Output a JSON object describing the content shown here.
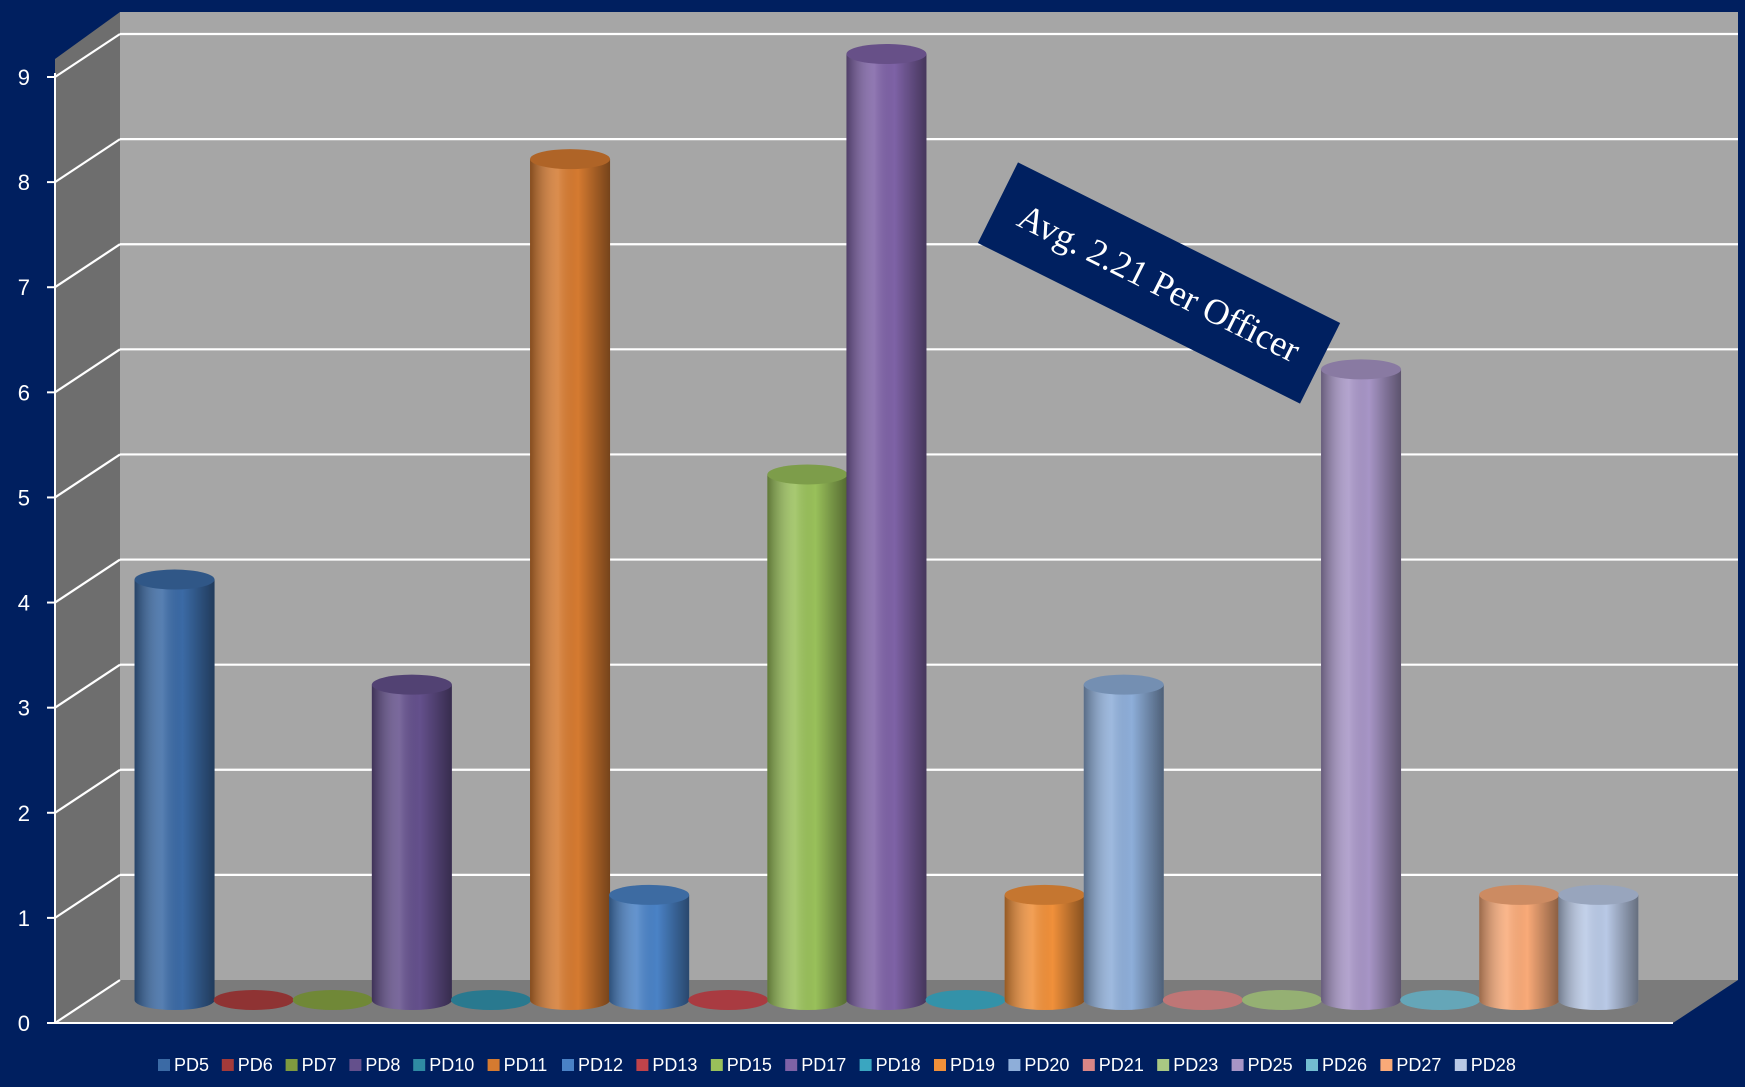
{
  "chart_data": {
    "type": "bar",
    "style": "3d-cylinder",
    "categories": [
      "PD5",
      "PD6",
      "PD7",
      "PD8",
      "PD10",
      "PD11",
      "PD12",
      "PD13",
      "PD15",
      "PD17",
      "PD18",
      "PD19",
      "PD20",
      "PD21",
      "PD23",
      "PD25",
      "PD26",
      "PD27",
      "PD28"
    ],
    "values": [
      4,
      0,
      0,
      3,
      0,
      8,
      1,
      0,
      5,
      9,
      0,
      1,
      3,
      0,
      0,
      6,
      0,
      1,
      1
    ],
    "colors": [
      "#3b6aa5",
      "#a33a3a",
      "#7f9a3f",
      "#64508c",
      "#2f8aa3",
      "#d57a30",
      "#4a82c6",
      "#c0434a",
      "#99c05a",
      "#7e62a6",
      "#3aa6c0",
      "#f0903a",
      "#8eaed9",
      "#d98686",
      "#a9c883",
      "#a795c6",
      "#73bdd1",
      "#f9aa78",
      "#b9c9e6"
    ],
    "ylim": [
      0,
      9
    ],
    "yticks": [
      "0",
      "1",
      "2",
      "3",
      "4",
      "5",
      "6",
      "7",
      "8",
      "9"
    ],
    "grid": true,
    "legend_position": "bottom",
    "title": "",
    "xlabel": "",
    "ylabel": "",
    "annotation": "Avg. 2.21 Per Officer",
    "background_color": "#001f5f",
    "wall_color": "#a6a6a6",
    "side_wall_color": "#6e6e6e",
    "annotation_bg": "#002060"
  }
}
